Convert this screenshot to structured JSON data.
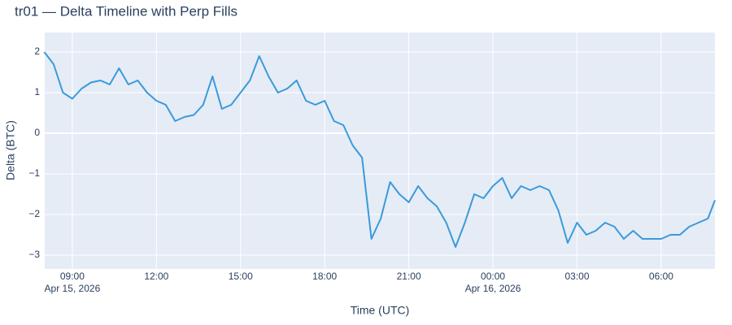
{
  "chart_data": {
    "type": "line",
    "title": "tr01 — Delta Timeline with Perp Fills",
    "xlabel": "Time (UTC)",
    "ylabel": "Delta (BTC)",
    "color": "#3a9ad9",
    "grid": true,
    "x": [
      "2026-04-15T08:00",
      "2026-04-15T08:20",
      "2026-04-15T08:40",
      "2026-04-15T09:00",
      "2026-04-15T09:20",
      "2026-04-15T09:40",
      "2026-04-15T10:00",
      "2026-04-15T10:20",
      "2026-04-15T10:40",
      "2026-04-15T11:00",
      "2026-04-15T11:20",
      "2026-04-15T11:40",
      "2026-04-15T12:00",
      "2026-04-15T12:20",
      "2026-04-15T12:40",
      "2026-04-15T13:00",
      "2026-04-15T13:20",
      "2026-04-15T13:40",
      "2026-04-15T14:00",
      "2026-04-15T14:20",
      "2026-04-15T14:40",
      "2026-04-15T15:00",
      "2026-04-15T15:20",
      "2026-04-15T15:40",
      "2026-04-15T16:00",
      "2026-04-15T16:20",
      "2026-04-15T16:40",
      "2026-04-15T17:00",
      "2026-04-15T17:20",
      "2026-04-15T17:40",
      "2026-04-15T18:00",
      "2026-04-15T18:20",
      "2026-04-15T18:40",
      "2026-04-15T19:00",
      "2026-04-15T19:20",
      "2026-04-15T19:40",
      "2026-04-15T20:00",
      "2026-04-15T20:20",
      "2026-04-15T20:40",
      "2026-04-15T21:00",
      "2026-04-15T21:20",
      "2026-04-15T21:40",
      "2026-04-15T22:00",
      "2026-04-15T22:20",
      "2026-04-15T22:40",
      "2026-04-15T23:00",
      "2026-04-15T23:20",
      "2026-04-15T23:40",
      "2026-04-16T00:00",
      "2026-04-16T00:20",
      "2026-04-16T00:40",
      "2026-04-16T01:00",
      "2026-04-16T01:20",
      "2026-04-16T01:40",
      "2026-04-16T02:00",
      "2026-04-16T02:20",
      "2026-04-16T02:40",
      "2026-04-16T03:00",
      "2026-04-16T03:20",
      "2026-04-16T03:40",
      "2026-04-16T04:00",
      "2026-04-16T04:20",
      "2026-04-16T04:40",
      "2026-04-16T05:00",
      "2026-04-16T05:20",
      "2026-04-16T05:40",
      "2026-04-16T06:00",
      "2026-04-16T06:20",
      "2026-04-16T06:40",
      "2026-04-16T07:00",
      "2026-04-16T07:20",
      "2026-04-16T07:40",
      "2026-04-16T07:55"
    ],
    "values": [
      2.0,
      1.7,
      1.0,
      0.85,
      1.1,
      1.25,
      1.3,
      1.2,
      1.6,
      1.2,
      1.3,
      1.0,
      0.8,
      0.7,
      0.3,
      0.4,
      0.45,
      0.7,
      1.4,
      0.6,
      0.7,
      1.0,
      1.3,
      1.9,
      1.4,
      1.0,
      1.1,
      1.3,
      0.8,
      0.7,
      0.8,
      0.3,
      0.2,
      -0.3,
      -0.6,
      -2.6,
      -2.1,
      -1.2,
      -1.5,
      -1.7,
      -1.3,
      -1.6,
      -1.8,
      -2.2,
      -2.8,
      -2.2,
      -1.5,
      -1.6,
      -1.3,
      -1.1,
      -1.6,
      -1.3,
      -1.4,
      -1.3,
      -1.4,
      -1.9,
      -2.7,
      -2.2,
      -2.5,
      -2.4,
      -2.2,
      -2.3,
      -2.6,
      -2.4,
      -2.6,
      -2.6,
      -2.6,
      -2.5,
      -2.5,
      -2.3,
      -2.2,
      -2.1,
      -1.65
    ],
    "xlim": [
      "2026-04-15T08:01",
      "2026-04-16T07:55"
    ],
    "xticks": [
      {
        "value": "2026-04-15T09:00",
        "label": "09:00",
        "date": "Apr 15, 2026"
      },
      {
        "value": "2026-04-15T12:00",
        "label": "12:00"
      },
      {
        "value": "2026-04-15T15:00",
        "label": "15:00"
      },
      {
        "value": "2026-04-15T18:00",
        "label": "18:00"
      },
      {
        "value": "2026-04-15T21:00",
        "label": "21:00"
      },
      {
        "value": "2026-04-16T00:00",
        "label": "00:00",
        "date": "Apr 16, 2026"
      },
      {
        "value": "2026-04-16T03:00",
        "label": "03:00"
      },
      {
        "value": "2026-04-16T06:00",
        "label": "06:00"
      }
    ],
    "ylim": [
      -3.34,
      2.48
    ],
    "yticks": [
      {
        "value": -3,
        "label": "−3"
      },
      {
        "value": -2,
        "label": "−2"
      },
      {
        "value": -1,
        "label": "−1"
      },
      0,
      1,
      2
    ]
  }
}
